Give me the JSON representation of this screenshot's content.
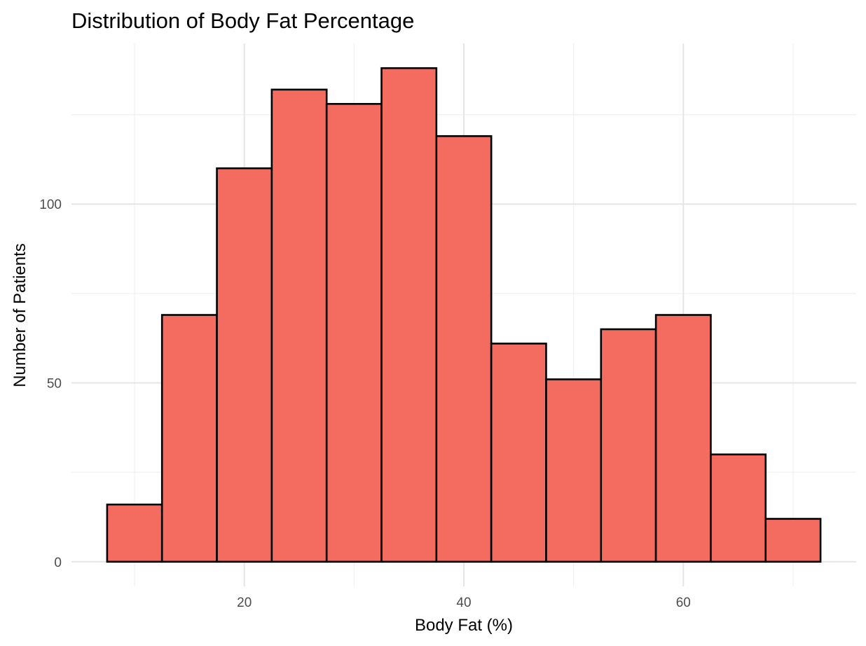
{
  "chart_data": {
    "type": "bar",
    "title": "Distribution of Body Fat Percentage",
    "xlabel": "Body Fat (%)",
    "ylabel": "Number of Patients",
    "bin_width": 5,
    "bins": [
      {
        "x0": 7.5,
        "x1": 12.5,
        "count": 16
      },
      {
        "x0": 12.5,
        "x1": 17.5,
        "count": 69
      },
      {
        "x0": 17.5,
        "x1": 22.5,
        "count": 110
      },
      {
        "x0": 22.5,
        "x1": 27.5,
        "count": 132
      },
      {
        "x0": 27.5,
        "x1": 32.5,
        "count": 128
      },
      {
        "x0": 32.5,
        "x1": 37.5,
        "count": 138
      },
      {
        "x0": 37.5,
        "x1": 42.5,
        "count": 119
      },
      {
        "x0": 42.5,
        "x1": 47.5,
        "count": 61
      },
      {
        "x0": 47.5,
        "x1": 52.5,
        "count": 51
      },
      {
        "x0": 52.5,
        "x1": 57.5,
        "count": 65
      },
      {
        "x0": 57.5,
        "x1": 62.5,
        "count": 69
      },
      {
        "x0": 62.5,
        "x1": 67.5,
        "count": 30
      },
      {
        "x0": 67.5,
        "x1": 72.5,
        "count": 12
      }
    ],
    "xlim": [
      4.25,
      75.75
    ],
    "ylim": [
      -6.9,
      144.9
    ],
    "x_ticks": [
      20,
      40,
      60
    ],
    "x_minor_ticks": [
      10,
      30,
      50,
      70
    ],
    "y_ticks": [
      0,
      50,
      100
    ],
    "y_minor_ticks": [
      25,
      75,
      125
    ],
    "grid": true,
    "legend": "none",
    "colors": {
      "fill": "#F46B60",
      "outline": "#000000"
    }
  }
}
